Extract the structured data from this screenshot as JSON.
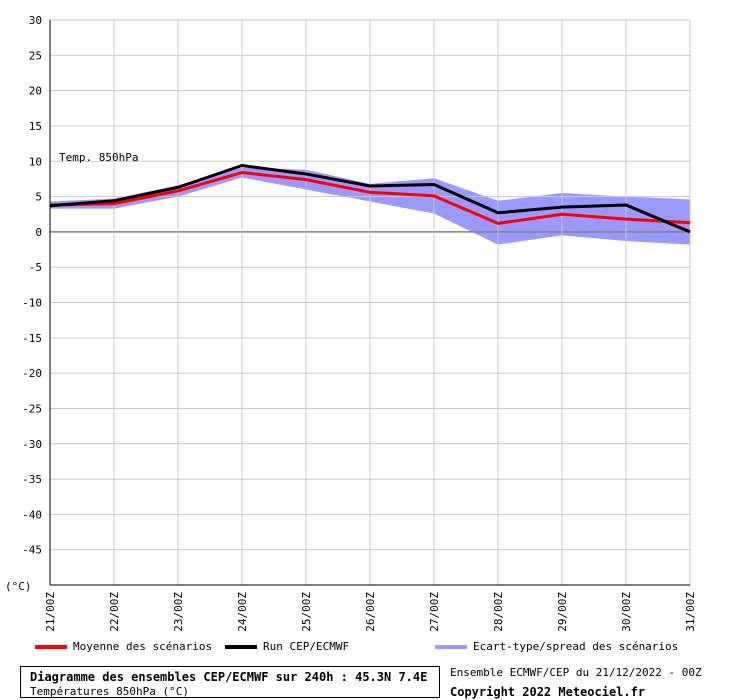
{
  "chart_data": {
    "type": "line",
    "title": "Diagramme des ensembles CEP/ECMWF sur 240h : 45.3N 7.4E",
    "subtitle": "Températures 850hPa (°C)",
    "annotation": "Temp. 850hPa",
    "ylabel": "(°C)",
    "ylim": [
      -50,
      30
    ],
    "yticks": [
      30,
      25,
      20,
      15,
      10,
      5,
      0,
      -5,
      -10,
      -15,
      -20,
      -25,
      -30,
      -35,
      -40,
      -45
    ],
    "categories": [
      "21/00Z",
      "22/00Z",
      "23/00Z",
      "24/00Z",
      "25/00Z",
      "26/00Z",
      "27/00Z",
      "28/00Z",
      "29/00Z",
      "30/00Z",
      "31/00Z"
    ],
    "x": [
      0,
      1,
      2,
      3,
      4,
      5,
      6,
      7,
      8,
      9,
      10
    ],
    "grid": true,
    "series": [
      {
        "name": "Moyenne des scénarios",
        "color": "#ff0000",
        "values": [
          3.8,
          4.0,
          5.8,
          8.4,
          7.4,
          5.6,
          5.1,
          1.2,
          2.5,
          1.8,
          1.3
        ]
      },
      {
        "name": "Run CEP/ECMWF",
        "color": "#000000",
        "values": [
          3.7,
          4.4,
          6.3,
          9.4,
          8.2,
          6.5,
          6.7,
          2.7,
          3.5,
          3.8,
          0.0
        ]
      }
    ],
    "band": {
      "name": "Ecart-type/spread des scénarios",
      "color": "#9999ff",
      "upper": [
        4.3,
        4.7,
        6.6,
        9.1,
        8.8,
        6.8,
        7.6,
        4.4,
        5.5,
        5.0,
        4.6
      ],
      "lower": [
        3.3,
        3.3,
        5.0,
        7.7,
        6.0,
        4.3,
        2.6,
        -1.8,
        -0.5,
        -1.3,
        -1.8
      ]
    },
    "legend_position": "bottom"
  },
  "footer": {
    "title": "Diagramme des ensembles CEP/ECMWF sur 240h : 45.3N 7.4E",
    "subtitle": "Températures 850hPa (°C)",
    "run_info": "Ensemble ECMWF/CEP du 21/12/2022 - 00Z",
    "copyright": "Copyright 2022 Meteociel.fr"
  }
}
